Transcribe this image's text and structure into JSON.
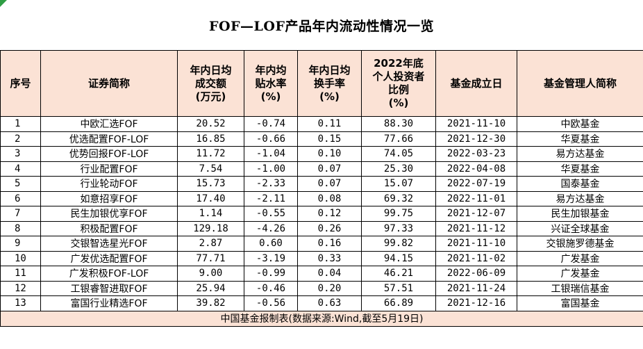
{
  "title": "FOF—LOF产品年内流动性情况一览",
  "headers": {
    "index": "序号",
    "name": "证券简称",
    "volume": [
      "年内日均",
      "成交额",
      "(万元)"
    ],
    "premium": [
      "年内均",
      "贴水率",
      "(%)"
    ],
    "turnover": [
      "年内日均",
      "换手率",
      "(%)"
    ],
    "retail": [
      "2022年底",
      "个人投资者",
      "比例",
      "(%)"
    ],
    "date": "基金成立日",
    "manager": "基金管理人简称"
  },
  "rows": [
    {
      "idx": "1",
      "name": "中欧汇选FOF",
      "volume": "20.52",
      "premium": "-0.74",
      "turnover": "0.11",
      "retail": "88.30",
      "date": "2021-11-10",
      "manager": "中欧基金"
    },
    {
      "idx": "2",
      "name": "优选配置FOF-LOF",
      "volume": "16.85",
      "premium": "-0.66",
      "turnover": "0.15",
      "retail": "77.66",
      "date": "2021-12-30",
      "manager": "华夏基金"
    },
    {
      "idx": "3",
      "name": "优势回报FOF-LOF",
      "volume": "11.72",
      "premium": "-1.04",
      "turnover": "0.10",
      "retail": "74.05",
      "date": "2022-03-23",
      "manager": "易方达基金"
    },
    {
      "idx": "4",
      "name": "行业配置FOF",
      "volume": "7.54",
      "premium": "-1.00",
      "turnover": "0.07",
      "retail": "25.30",
      "date": "2022-04-08",
      "manager": "华夏基金"
    },
    {
      "idx": "5",
      "name": "行业轮动FOF",
      "volume": "15.73",
      "premium": "-2.33",
      "turnover": "0.07",
      "retail": "15.07",
      "date": "2022-07-19",
      "manager": "国泰基金"
    },
    {
      "idx": "6",
      "name": "如意招享FOF",
      "volume": "17.40",
      "premium": "-2.11",
      "turnover": "0.08",
      "retail": "69.32",
      "date": "2022-11-01",
      "manager": "易方达基金"
    },
    {
      "idx": "7",
      "name": "民生加银优享FOF",
      "volume": "1.14",
      "premium": "-0.55",
      "turnover": "0.12",
      "retail": "99.75",
      "date": "2021-12-07",
      "manager": "民生加银基金"
    },
    {
      "idx": "8",
      "name": "积极配置FOF",
      "volume": "129.18",
      "premium": "-4.26",
      "turnover": "0.26",
      "retail": "97.33",
      "date": "2021-11-12",
      "manager": "兴证全球基金"
    },
    {
      "idx": "9",
      "name": "交银智选星光FOF",
      "volume": "2.87",
      "premium": "0.60",
      "turnover": "0.16",
      "retail": "99.82",
      "date": "2021-11-10",
      "manager": "交银施罗德基金"
    },
    {
      "idx": "10",
      "name": "广发优选配置FOF",
      "volume": "77.71",
      "premium": "-3.19",
      "turnover": "0.33",
      "retail": "94.15",
      "date": "2021-11-02",
      "manager": "广发基金"
    },
    {
      "idx": "11",
      "name": "广发积极FOF-LOF",
      "volume": "9.00",
      "premium": "-0.99",
      "turnover": "0.04",
      "retail": "46.21",
      "date": "2022-06-09",
      "manager": "广发基金"
    },
    {
      "idx": "12",
      "name": "工银睿智进取FOF",
      "volume": "25.94",
      "premium": "-0.46",
      "turnover": "0.20",
      "retail": "57.51",
      "date": "2021-11-24",
      "manager": "工银瑞信基金"
    },
    {
      "idx": "13",
      "name": "富国行业精选FOF",
      "volume": "39.82",
      "premium": "-0.56",
      "turnover": "0.63",
      "retail": "66.89",
      "date": "2021-12-16",
      "manager": "富国基金"
    }
  ],
  "footer": "中国基金报制表(数据来源:Wind,截至5月19日)",
  "colors": {
    "header_bg": "#fbe2d5",
    "border": "#000000",
    "corner": "#2f9e44"
  }
}
